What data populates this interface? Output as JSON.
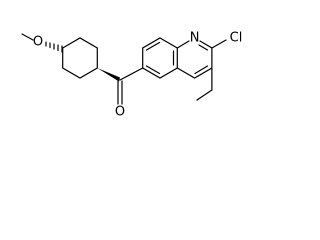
{
  "atoms": {
    "methoxy_oxygen": "O",
    "carbonyl_oxygen": "O",
    "ring_nitrogen": "N",
    "chlorine": "Cl"
  }
}
